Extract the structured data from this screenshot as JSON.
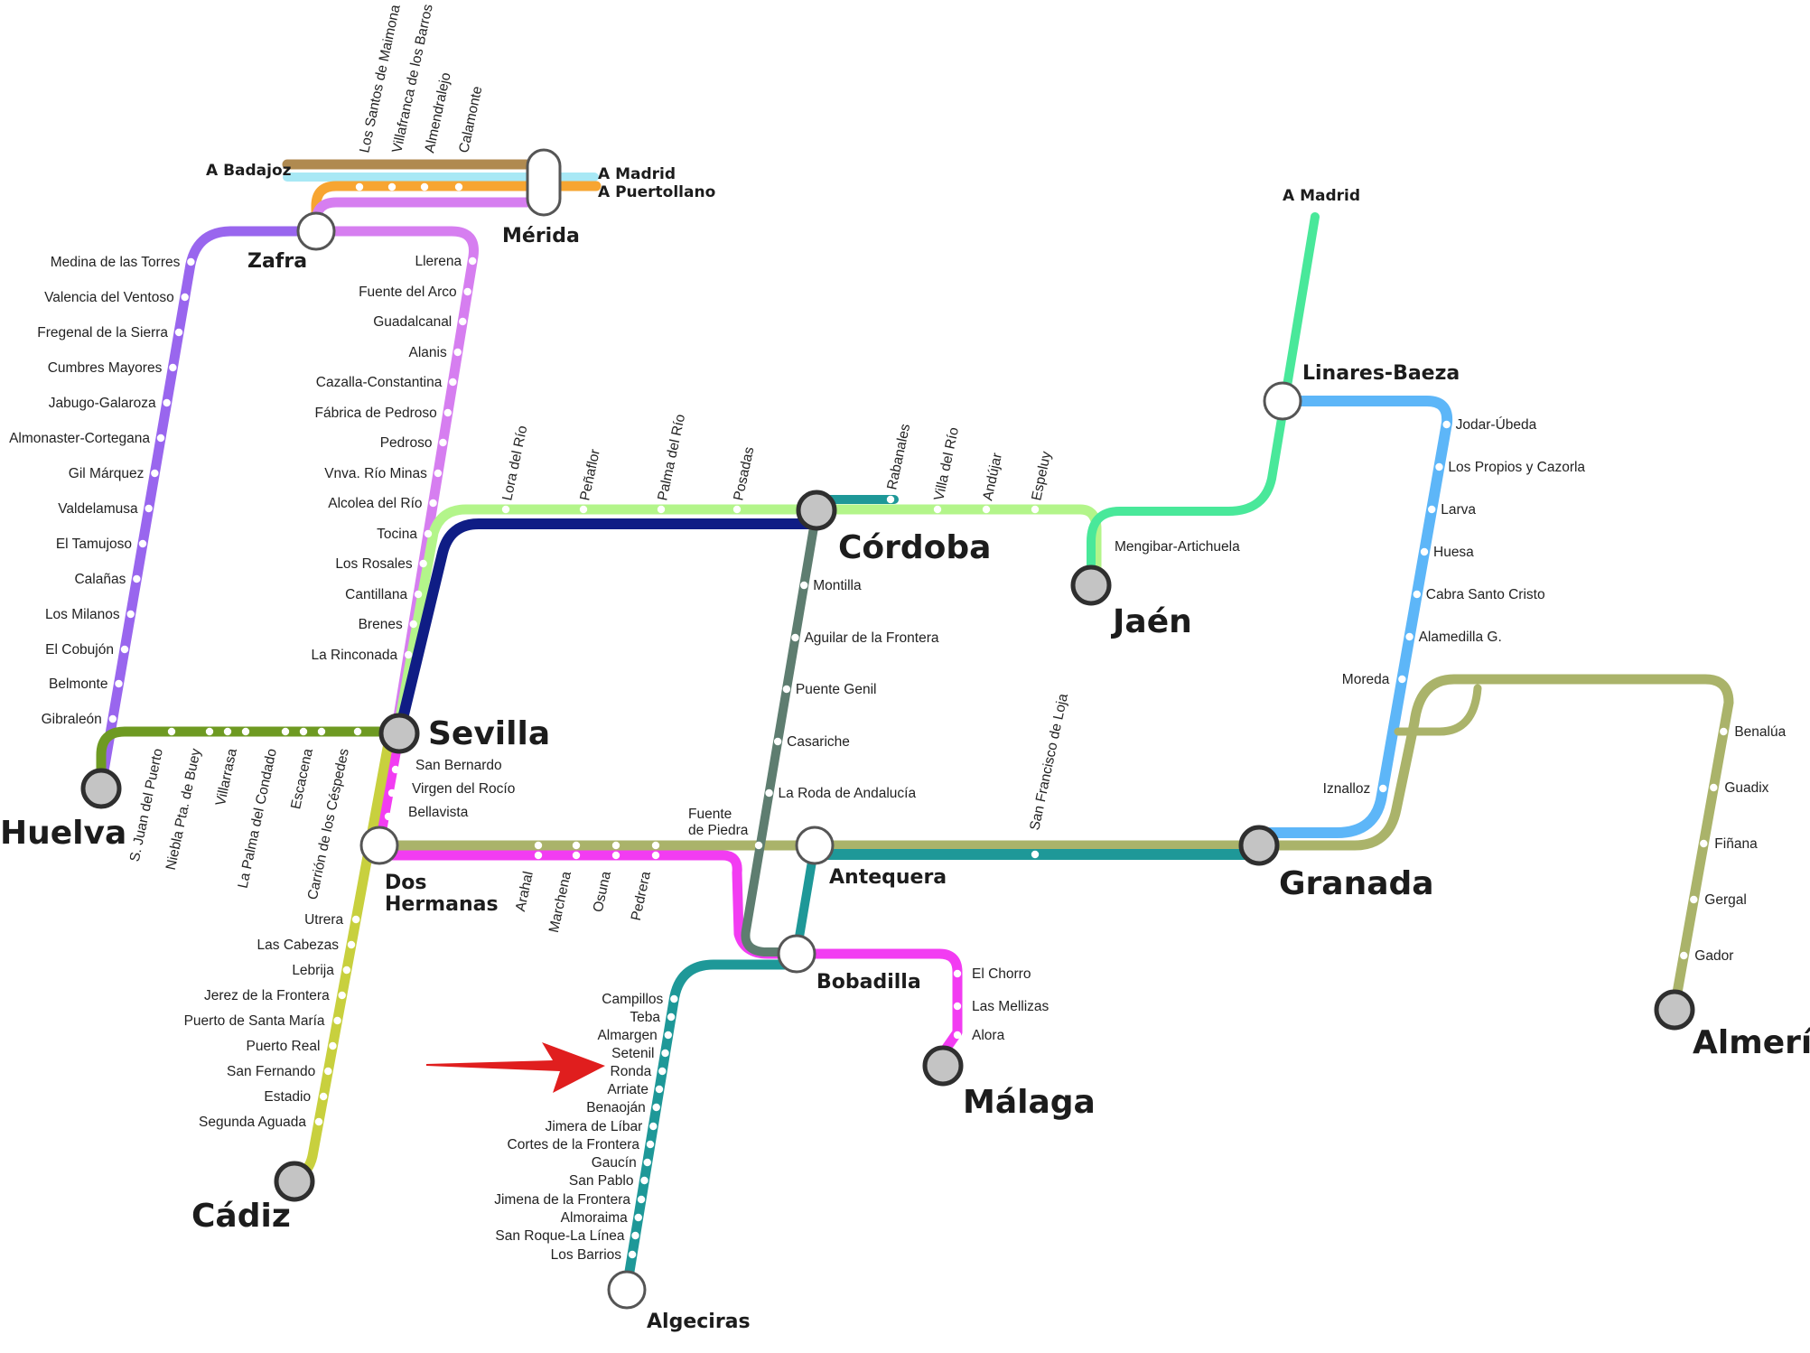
{
  "colors": {
    "morado": "#9966ee",
    "lila": "#d67ef0",
    "marron": "#b08a50",
    "celeste": "#a8e8f5",
    "naranja": "#f7a531",
    "verde_claro": "#b3f58a",
    "azul_oscuro": "#0f1d85",
    "verde_oliva": "#6e9a22",
    "amarillo": "#c8d03e",
    "magenta": "#f23cf2",
    "caqui": "#aab36a",
    "gris_verde": "#5e7d70",
    "turquesa": "#1e9898",
    "verde_agua": "#49e89a",
    "azul": "#5db6f8",
    "arrow": "#e01e1e"
  },
  "destinations": {
    "badajoz": "A Badajoz",
    "madrid_merida": "A Madrid",
    "puertollano": "A Puertollano",
    "madrid_linares": "A Madrid"
  },
  "cities": {
    "huelva": "Huelva",
    "sevilla": "Sevilla",
    "cordoba": "Córdoba",
    "jaen": "Jaén",
    "granada": "Granada",
    "almeria": "Almería",
    "malaga": "Málaga",
    "cadiz": "Cádiz",
    "zafra": "Zafra",
    "merida": "Mérida",
    "linares": "Linares-Baeza",
    "dos_hermanas_1": "Dos",
    "dos_hermanas_2": "Hermanas",
    "antequera": "Antequera",
    "bobadilla": "Bobadilla",
    "algeciras": "Algeciras",
    "fuente_piedra_1": "Fuente",
    "fuente_piedra_2": "de Piedra"
  },
  "lines": {
    "merida_top_stations": [
      "Los Santos de Maimona",
      "Villafranca de los Barros",
      "Almendralejo",
      "Calamonte"
    ],
    "huelva_zafra_stations": [
      "Medina de las Torres",
      "Valencia del Ventoso",
      "Fregenal de la Sierra",
      "Cumbres Mayores",
      "Jabugo-Galaroza",
      "Almonaster-Cortegana",
      "Gil Márquez",
      "Valdelamusa",
      "El Tamujoso",
      "Calañas",
      "Los Milanos",
      "El Cobujón",
      "Belmonte",
      "Gibraleón"
    ],
    "merida_sevilla_stations": [
      "Llerena",
      "Fuente del Arco",
      "Guadalcanal",
      "Alanis",
      "Cazalla-Constantina",
      "Fábrica de Pedroso",
      "Pedroso",
      "Vnva. Río Minas",
      "Alcolea del Río",
      "Tocina",
      "Los Rosales",
      "Cantillana",
      "Brenes",
      "La Rinconada"
    ],
    "huelva_sevilla_stations": [
      "S. Juan del Puerto",
      "Niebla Pta. de Buey",
      "Villarrasa",
      "La Palma del Condado",
      "Escacena",
      "Carrión de los Céspedes"
    ],
    "sevilla_cordoba_stations": [
      "Lora del Río",
      "Peñaflor",
      "Palma del Río",
      "Posadas"
    ],
    "cordoba_jaen_stations": [
      "Rabanales",
      "Villa del Río",
      "Andújar",
      "Espeluy"
    ],
    "jaen_station": "Mengibar-Artichuela",
    "linares_granada_stations": [
      "Jodar-Úbeda",
      "Los Propios y Cazorla",
      "Larva",
      "Huesa",
      "Cabra Santo Cristo",
      "Alamedilla G.",
      "Moreda",
      "Iznalloz"
    ],
    "almeria_stations": [
      "Benalúa",
      "Guadix",
      "Fiñana",
      "Gergal",
      "Gador"
    ],
    "cordoba_bobadilla_stations": [
      "Montilla",
      "Aguilar de la Frontera",
      "Puente Genil",
      "Casariche",
      "La Roda de Andalucía"
    ],
    "sevilla_dh_stations": [
      "San Bernardo",
      "Virgen del Rocío",
      "Bellavista"
    ],
    "dh_bobadilla_stations": [
      "Arahal",
      "Marchena",
      "Osuna",
      "Pedrera"
    ],
    "granada_station": "San Francisco de Loja",
    "cadiz_stations": [
      "Utrera",
      "Las Cabezas",
      "Lebrija",
      "Jerez de la Frontera",
      "Puerto de Santa María",
      "Puerto Real",
      "San Fernando",
      "Estadio",
      "Segunda Aguada"
    ],
    "malaga_stations": [
      "El Chorro",
      "Las Mellizas",
      "Alora"
    ],
    "algeciras_stations": [
      "Campillos",
      "Teba",
      "Almargen",
      "Setenil",
      "Ronda",
      "Arriate",
      "Benaoján",
      "Jimera de Líbar",
      "Cortes de la Frontera",
      "Gaucín",
      "San Pablo",
      "Jimena de la Frontera",
      "Almoraima",
      "San Roque-La Línea",
      "Los Barrios"
    ]
  }
}
